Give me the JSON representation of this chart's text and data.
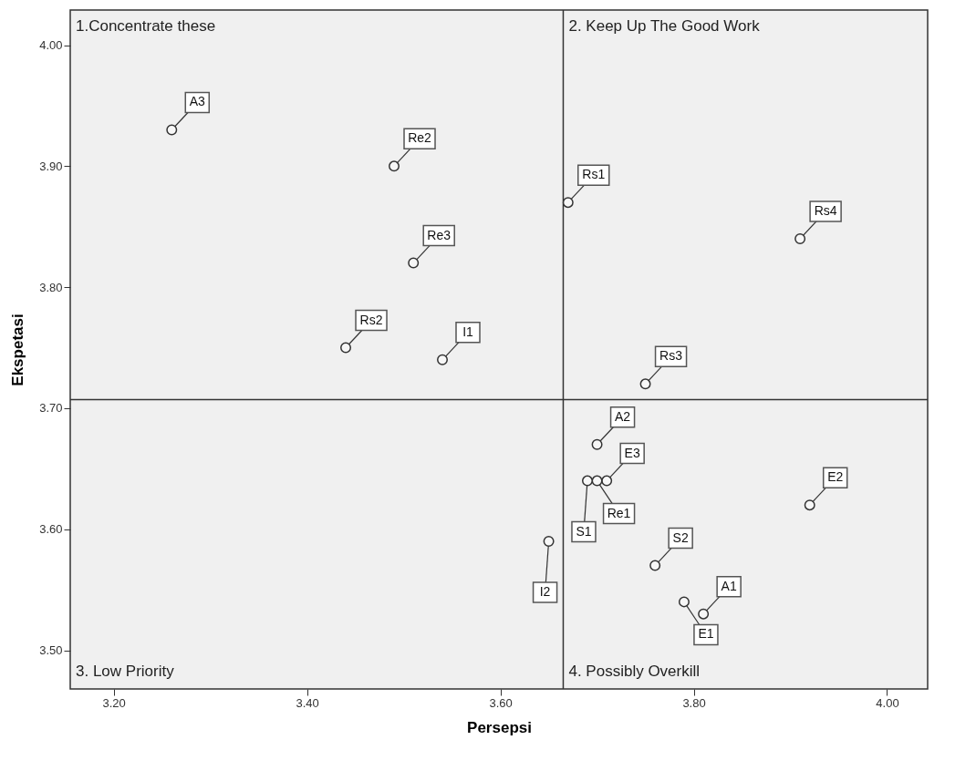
{
  "chart_data": {
    "type": "scatter",
    "xlabel": "Persepsi",
    "ylabel": "Ekspetasi",
    "xlim": [
      3.155,
      4.042
    ],
    "ylim": [
      3.468,
      4.029
    ],
    "xticks": [
      {
        "value": 3.2,
        "label": "3.20"
      },
      {
        "value": 3.4,
        "label": "3.40"
      },
      {
        "value": 3.6,
        "label": "3.60"
      },
      {
        "value": 3.8,
        "label": "3.80"
      },
      {
        "value": 4.0,
        "label": "4.00"
      }
    ],
    "yticks": [
      {
        "value": 3.5,
        "label": "3.50"
      },
      {
        "value": 3.6,
        "label": "3.60"
      },
      {
        "value": 3.7,
        "label": "3.70"
      },
      {
        "value": 3.8,
        "label": "3.80"
      },
      {
        "value": 3.9,
        "label": "3.90"
      },
      {
        "value": 4.0,
        "label": "4.00"
      }
    ],
    "grid": false,
    "marker": "circle",
    "series": [
      {
        "color": "#333333",
        "x": [
          3.26,
          3.49,
          3.51,
          3.44,
          3.54,
          3.67,
          3.91,
          3.75,
          3.7,
          3.71,
          3.7,
          3.69,
          3.92,
          3.65,
          3.76,
          3.81,
          3.79
        ],
        "values": [
          3.93,
          3.9,
          3.82,
          3.75,
          3.74,
          3.87,
          3.84,
          3.72,
          3.67,
          3.64,
          3.64,
          3.64,
          3.62,
          3.59,
          3.57,
          3.53,
          3.54
        ]
      }
    ],
    "ref_lines": [
      {
        "axis": "x",
        "value": 3.665,
        "color": "#333333"
      },
      {
        "axis": "y",
        "value": 3.707,
        "color": "#333333"
      }
    ],
    "annotations": [
      "1.Concentrate these",
      "2. Keep Up The Good Work",
      "3. Low Priority",
      "4. Possibly Overkill",
      {
        "text": "A3",
        "x": 3.26,
        "y": 3.93
      },
      {
        "text": "Re2",
        "x": 3.49,
        "y": 3.9
      },
      {
        "text": "Re3",
        "x": 3.51,
        "y": 3.82
      },
      {
        "text": "Rs2",
        "x": 3.44,
        "y": 3.75
      },
      {
        "text": "I1",
        "x": 3.54,
        "y": 3.74
      },
      {
        "text": "Rs1",
        "x": 3.67,
        "y": 3.87
      },
      {
        "text": "Rs4",
        "x": 3.91,
        "y": 3.84
      },
      {
        "text": "Rs3",
        "x": 3.75,
        "y": 3.72
      },
      {
        "text": "A2",
        "x": 3.7,
        "y": 3.67
      },
      {
        "text": "E3",
        "x": 3.71,
        "y": 3.64
      },
      {
        "text": "Re1",
        "x": 3.7,
        "y": 3.64
      },
      {
        "text": "S1",
        "x": 3.69,
        "y": 3.64
      },
      {
        "text": "E2",
        "x": 3.92,
        "y": 3.62
      },
      {
        "text": "I2",
        "x": 3.65,
        "y": 3.59
      },
      {
        "text": "S2",
        "x": 3.76,
        "y": 3.57
      },
      {
        "text": "A1",
        "x": 3.81,
        "y": 3.53
      },
      {
        "text": "E1",
        "x": 3.79,
        "y": 3.54
      }
    ]
  }
}
